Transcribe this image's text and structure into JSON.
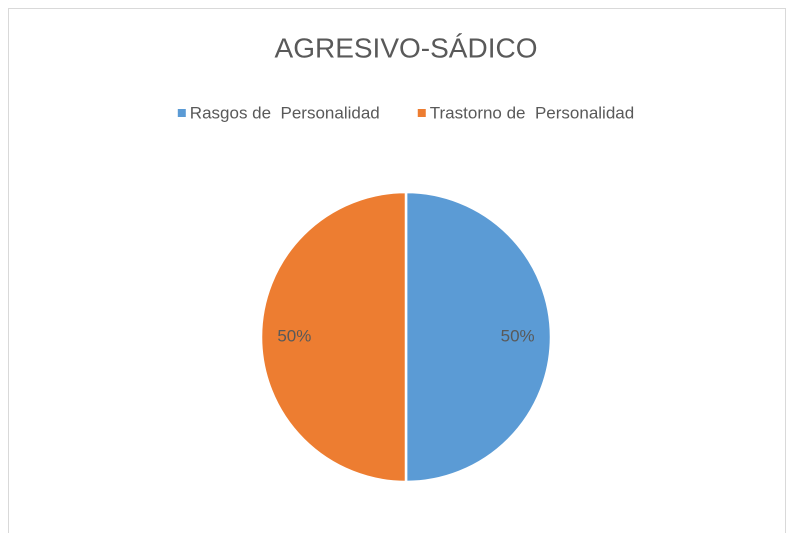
{
  "chart_data": {
    "type": "pie",
    "title": "AGRESIVO-SÁDICO",
    "categories": [
      "Rasgos de  Personalidad",
      "Trastorno de  Personalidad"
    ],
    "values": [
      50,
      50
    ],
    "value_labels": [
      "50%",
      "50%"
    ],
    "colors": [
      "#5b9bd5",
      "#ed7d31"
    ],
    "legend": "top"
  }
}
